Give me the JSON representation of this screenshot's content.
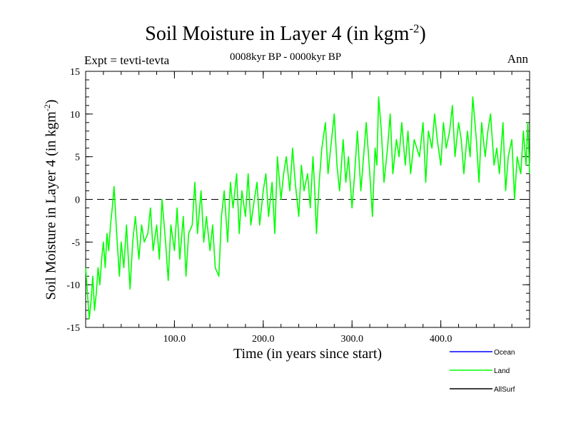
{
  "chart_data": {
    "type": "line",
    "title_main": "Soil Moisture in Layer 4 (in kgm",
    "title_sup": "-2",
    "title_close": ")",
    "subtitle": "0008kyr BP - 0000kyr BP",
    "expt_label": "Expt = tevti-tevta",
    "period_label": "Ann",
    "xlabel": "Time (in years since start)",
    "ylabel_main": "Soil Moisture in Layer 4 (in kgm",
    "ylabel_sup": "-2",
    "ylabel_close": ")",
    "xlim": [
      0,
      500
    ],
    "ylim": [
      -15,
      15
    ],
    "x_ticks": [
      {
        "value": 100,
        "label": "100.0"
      },
      {
        "value": 200,
        "label": "200.0"
      },
      {
        "value": 300,
        "label": "300.0"
      },
      {
        "value": 400,
        "label": "400.0"
      }
    ],
    "y_ticks": [
      {
        "value": 15,
        "label": "15"
      },
      {
        "value": 10,
        "label": "10"
      },
      {
        "value": 5,
        "label": "5"
      },
      {
        "value": 0,
        "label": "0"
      },
      {
        "value": -5,
        "label": "-5"
      },
      {
        "value": -10,
        "label": "-10"
      },
      {
        "value": -15,
        "label": "-15"
      }
    ],
    "reference_line": {
      "y": 0,
      "style": "dashed"
    },
    "legend": [
      {
        "name": "Ocean",
        "color": "#0000ff"
      },
      {
        "name": "Land",
        "color": "#00ff00"
      },
      {
        "name": "AllSurf",
        "color": "#000000"
      }
    ],
    "series": [
      {
        "name": "Land",
        "color": "#00ff00",
        "x": [
          0,
          2,
          4,
          6,
          8,
          10,
          12,
          14,
          16,
          18,
          20,
          22,
          24,
          26,
          28,
          30,
          32,
          35,
          38,
          40,
          43,
          46,
          50,
          53,
          56,
          60,
          63,
          66,
          70,
          73,
          76,
          80,
          83,
          86,
          90,
          93,
          96,
          100,
          103,
          106,
          110,
          113,
          116,
          120,
          123,
          126,
          130,
          133,
          136,
          140,
          143,
          146,
          150,
          153,
          156,
          160,
          163,
          166,
          170,
          173,
          176,
          180,
          183,
          186,
          190,
          193,
          196,
          200,
          203,
          206,
          210,
          213,
          216,
          220,
          223,
          226,
          230,
          233,
          236,
          240,
          243,
          246,
          250,
          253,
          256,
          258,
          260,
          263,
          266,
          270,
          273,
          276,
          280,
          283,
          286,
          290,
          293,
          296,
          300,
          303,
          306,
          310,
          313,
          316,
          320,
          323,
          326,
          328,
          330,
          333,
          336,
          340,
          343,
          346,
          350,
          353,
          356,
          360,
          363,
          366,
          370,
          373,
          376,
          380,
          383,
          386,
          390,
          393,
          396,
          400,
          403,
          406,
          410,
          413,
          416,
          420,
          423,
          426,
          430,
          433,
          436,
          440,
          443,
          446,
          450,
          453,
          456,
          460,
          463,
          466,
          470,
          473,
          476,
          480,
          483,
          486,
          490,
          493,
          496,
          498,
          500
        ],
        "values": [
          -8,
          -11,
          -14,
          -12,
          -9,
          -13,
          -11,
          -8,
          -10,
          -7,
          -5,
          -8,
          -4,
          -6,
          -3,
          -1,
          1.5,
          -4,
          -9,
          -5,
          -8,
          -3,
          -10.5,
          -5,
          -2,
          -7,
          -3,
          -5,
          -4,
          -1,
          -6,
          -3,
          -7,
          0,
          -5,
          -9.5,
          -3,
          -6,
          -1,
          -7,
          -2,
          -9,
          -4,
          -3,
          2,
          -4,
          1,
          -5,
          -2,
          -6,
          -3,
          -8,
          -9,
          -2,
          1,
          -5,
          2,
          -1,
          3,
          -4,
          1,
          -2,
          3,
          -3,
          0,
          2,
          -3,
          1,
          3,
          -2,
          2,
          -4,
          5,
          0,
          3,
          5,
          1,
          6,
          2,
          -2,
          4,
          1,
          3,
          -1,
          5,
          1,
          -4,
          2,
          6,
          9,
          3,
          6,
          10,
          4,
          1,
          7,
          2,
          5,
          -1,
          3,
          8,
          1,
          5,
          9,
          3,
          -2,
          6,
          4,
          12,
          8,
          2,
          6,
          10,
          3,
          7,
          5,
          9,
          4,
          8,
          3,
          7,
          6,
          5,
          9,
          2,
          8,
          6,
          10,
          7,
          4,
          9,
          6,
          8,
          11,
          5,
          9,
          7,
          3,
          8,
          5,
          12,
          7,
          2,
          9,
          5,
          8,
          10,
          4,
          6,
          3,
          9,
          1,
          5,
          7,
          0,
          5,
          3,
          8,
          4,
          9,
          3
        ]
      }
    ]
  }
}
